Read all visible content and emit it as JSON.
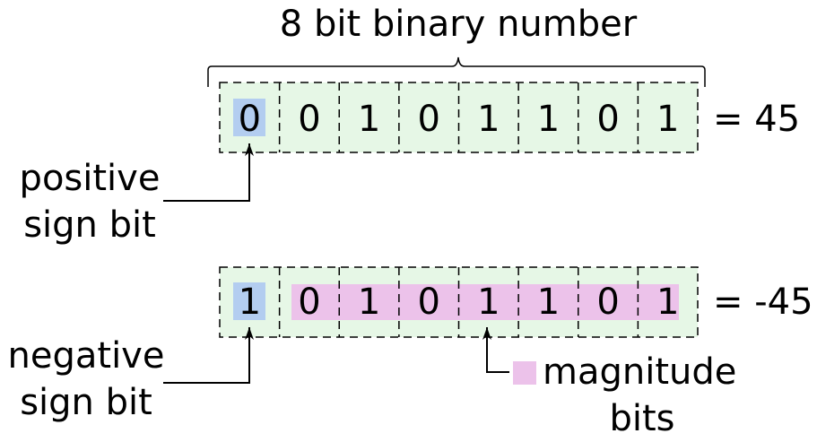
{
  "title": "8 bit binary number",
  "colors": {
    "register_fill": "#e6f7e6",
    "sign_fill": "#b3cdf0",
    "magnitude_fill": "#ecc2ea",
    "stroke": "#000000"
  },
  "rows": [
    {
      "bits": [
        "0",
        "0",
        "1",
        "0",
        "1",
        "1",
        "0",
        "1"
      ],
      "result": "= 45",
      "sign_label": [
        "positive",
        "sign bit"
      ]
    },
    {
      "bits": [
        "1",
        "0",
        "1",
        "0",
        "1",
        "1",
        "0",
        "1"
      ],
      "result": "= -45",
      "sign_label": [
        "negative",
        "sign bit"
      ]
    }
  ],
  "magnitude_label": [
    "magnitude",
    "bits"
  ]
}
